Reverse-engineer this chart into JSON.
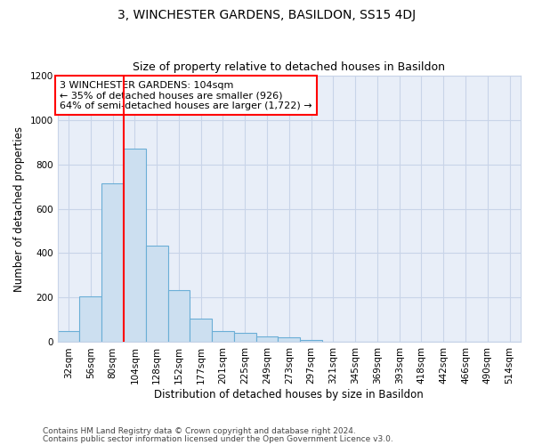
{
  "title": "3, WINCHESTER GARDENS, BASILDON, SS15 4DJ",
  "subtitle": "Size of property relative to detached houses in Basildon",
  "xlabel": "Distribution of detached houses by size in Basildon",
  "ylabel": "Number of detached properties",
  "categories": [
    "32sqm",
    "56sqm",
    "80sqm",
    "104sqm",
    "128sqm",
    "152sqm",
    "177sqm",
    "201sqm",
    "225sqm",
    "249sqm",
    "273sqm",
    "297sqm",
    "321sqm",
    "345sqm",
    "369sqm",
    "393sqm",
    "418sqm",
    "442sqm",
    "466sqm",
    "490sqm",
    "514sqm"
  ],
  "values": [
    50,
    205,
    715,
    870,
    435,
    235,
    105,
    50,
    40,
    25,
    20,
    10,
    0,
    0,
    0,
    0,
    0,
    0,
    0,
    0,
    0
  ],
  "bar_color": "#ccdff0",
  "bar_edge_color": "#6aaed6",
  "vline_x": 2.5,
  "vline_color": "red",
  "annotation_lines": [
    "3 WINCHESTER GARDENS: 104sqm",
    "← 35% of detached houses are smaller (926)",
    "64% of semi-detached houses are larger (1,722) →"
  ],
  "annotation_box_color": "white",
  "annotation_box_edge": "red",
  "ylim": [
    0,
    1200
  ],
  "yticks": [
    0,
    200,
    400,
    600,
    800,
    1000,
    1200
  ],
  "footnote1": "Contains HM Land Registry data © Crown copyright and database right 2024.",
  "footnote2": "Contains public sector information licensed under the Open Government Licence v3.0.",
  "title_fontsize": 10,
  "subtitle_fontsize": 9,
  "xlabel_fontsize": 8.5,
  "ylabel_fontsize": 8.5,
  "tick_fontsize": 7.5,
  "annotation_fontsize": 8,
  "footnote_fontsize": 6.5,
  "bg_color": "#ffffff",
  "plot_bg_color": "#e8eef8"
}
